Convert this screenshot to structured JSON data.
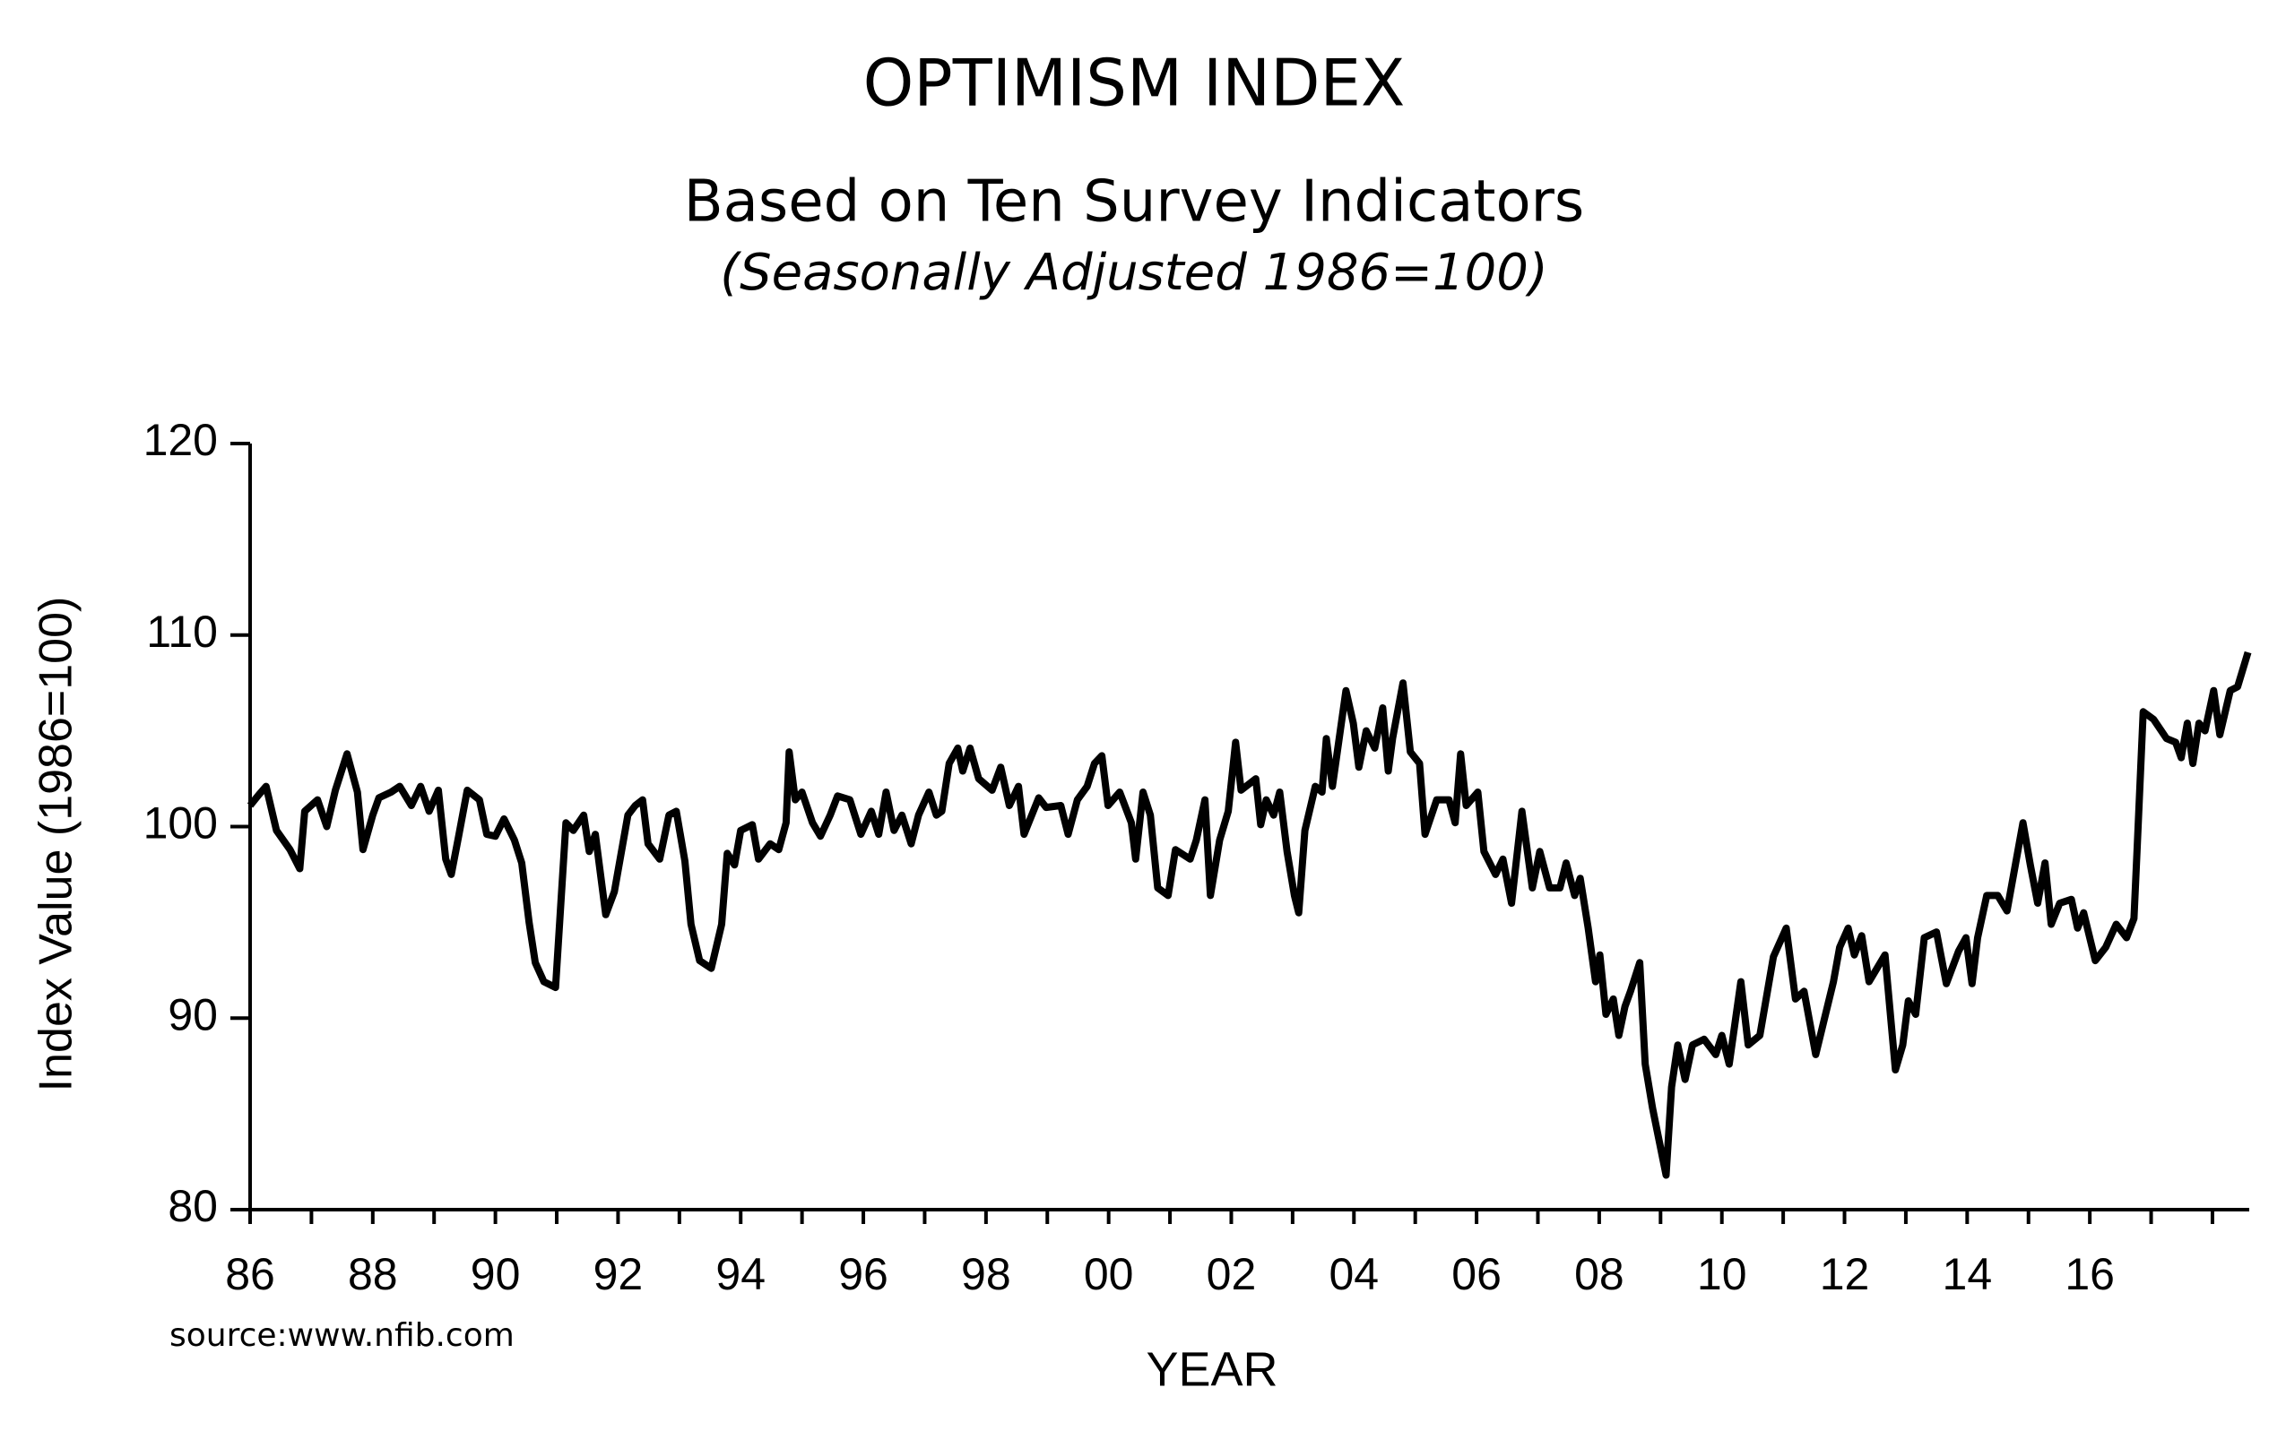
{
  "chart_data": {
    "type": "line",
    "title": "OPTIMISM INDEX",
    "subtitle": "Based on Ten Survey Indicators",
    "subtitle2": "(Seasonally Adjusted 1986=100)",
    "ylabel": "Index Value (1986=100)",
    "xlabel": "YEAR",
    "source": "source:www.nfib.com",
    "color": "#000000",
    "xlim": [
      1986,
      2018.6
    ],
    "ylim": [
      80,
      120
    ],
    "yticks": [
      80,
      90,
      100,
      110,
      120
    ],
    "xticks": [
      {
        "value": 1986,
        "label": "86"
      },
      {
        "value": 1988,
        "label": "88"
      },
      {
        "value": 1990,
        "label": "90"
      },
      {
        "value": 1992,
        "label": "92"
      },
      {
        "value": 1994,
        "label": "94"
      },
      {
        "value": 1996,
        "label": "96"
      },
      {
        "value": 1998,
        "label": "98"
      },
      {
        "value": 2000,
        "label": "00"
      },
      {
        "value": 2002,
        "label": "02"
      },
      {
        "value": 2004,
        "label": "04"
      },
      {
        "value": 2006,
        "label": "06"
      },
      {
        "value": 2008,
        "label": "08"
      },
      {
        "value": 2010,
        "label": "10"
      },
      {
        "value": 2012,
        "label": "12"
      },
      {
        "value": 2014,
        "label": "14"
      },
      {
        "value": 2016,
        "label": "16"
      }
    ],
    "xminor_ticks": [
      1987,
      1989,
      1991,
      1993,
      1995,
      1997,
      1999,
      2001,
      2003,
      2005,
      2007,
      2009,
      2011,
      2013,
      2015,
      2017,
      2018
    ],
    "x": [
      1986.0,
      1986.15,
      1986.26,
      1986.43,
      1986.65,
      1986.81,
      1986.89,
      1987.1,
      1987.25,
      1987.39,
      1987.58,
      1987.75,
      1987.84,
      1988.0,
      1988.1,
      1988.3,
      1988.44,
      1988.63,
      1988.78,
      1988.92,
      1989.07,
      1989.19,
      1989.28,
      1989.4,
      1989.54,
      1989.74,
      1989.86,
      1990.0,
      1990.14,
      1990.31,
      1990.43,
      1990.55,
      1990.65,
      1990.79,
      1990.98,
      1991.15,
      1991.27,
      1991.44,
      1991.53,
      1991.63,
      1991.8,
      1991.94,
      1992.16,
      1992.28,
      1992.4,
      1992.49,
      1992.68,
      1992.83,
      1992.95,
      1993.09,
      1993.19,
      1993.33,
      1993.52,
      1993.69,
      1993.78,
      1993.9,
      1994.0,
      1994.19,
      1994.29,
      1994.48,
      1994.62,
      1994.74,
      1994.79,
      1994.89,
      1995.0,
      1995.17,
      1995.3,
      1995.46,
      1995.58,
      1995.78,
      1995.96,
      1996.13,
      1996.25,
      1996.37,
      1996.5,
      1996.63,
      1996.78,
      1996.9,
      1997.07,
      1997.19,
      1997.28,
      1997.4,
      1997.54,
      1997.62,
      1997.74,
      1997.88,
      1998.1,
      1998.24,
      1998.38,
      1998.53,
      1998.62,
      1998.86,
      1998.98,
      1999.22,
      1999.34,
      1999.49,
      1999.65,
      1999.77,
      1999.89,
      1999.99,
      2000.18,
      2000.37,
      2000.44,
      2000.56,
      2000.68,
      2000.8,
      2000.97,
      2001.09,
      2001.33,
      2001.43,
      2001.57,
      2001.66,
      2001.81,
      2001.95,
      2002.07,
      2002.16,
      2002.4,
      2002.48,
      2002.57,
      2002.69,
      2002.79,
      2002.91,
      2003.03,
      2003.1,
      2003.2,
      2003.37,
      2003.48,
      2003.55,
      2003.65,
      2003.87,
      2003.99,
      2004.08,
      2004.2,
      2004.34,
      2004.47,
      2004.56,
      2004.63,
      2004.8,
      2004.92,
      2005.07,
      2005.16,
      2005.35,
      2005.55,
      2005.65,
      2005.74,
      2005.83,
      2006.02,
      2006.12,
      2006.31,
      2006.43,
      2006.57,
      2006.74,
      2006.91,
      2007.03,
      2007.19,
      2007.36,
      2007.46,
      2007.6,
      2007.69,
      2007.82,
      2007.94,
      2008.01,
      2008.11,
      2008.23,
      2008.32,
      2008.42,
      2008.51,
      2008.66,
      2008.75,
      2008.87,
      2009.09,
      2009.18,
      2009.28,
      2009.4,
      2009.52,
      2009.71,
      2009.9,
      2010.0,
      2010.12,
      2010.31,
      2010.43,
      2010.62,
      2010.84,
      2011.05,
      2011.2,
      2011.34,
      2011.53,
      2011.82,
      2011.92,
      2012.06,
      2012.16,
      2012.28,
      2012.4,
      2012.66,
      2012.83,
      2012.95,
      2013.04,
      2013.16,
      2013.3,
      2013.5,
      2013.66,
      2013.86,
      2013.98,
      2014.08,
      2014.17,
      2014.32,
      2014.5,
      2014.65,
      2014.91,
      2015.03,
      2015.15,
      2015.27,
      2015.37,
      2015.51,
      2015.7,
      2015.8,
      2015.9,
      2016.09,
      2016.26,
      2016.43,
      2016.6,
      2016.72,
      2016.77,
      2016.87,
      2017.04,
      2017.25,
      2017.4,
      2017.49,
      2017.59,
      2017.68,
      2017.78,
      2017.88,
      2018.02,
      2018.12,
      2018.29,
      2018.41,
      2018.58
    ],
    "values": [
      101.1,
      101.7,
      102.1,
      99.8,
      98.8,
      97.8,
      100.8,
      101.4,
      100,
      101.9,
      103.8,
      101.8,
      98.8,
      100.6,
      101.5,
      101.8,
      102.1,
      101.1,
      102.1,
      100.8,
      101.9,
      98.3,
      97.5,
      99.5,
      101.9,
      101.4,
      99.6,
      99.5,
      100.4,
      99.3,
      98.1,
      95,
      92.9,
      91.9,
      91.6,
      100.2,
      99.8,
      100.6,
      98.7,
      99.6,
      95.4,
      96.6,
      100.6,
      101.1,
      101.4,
      99.1,
      98.3,
      100.6,
      100.8,
      98.2,
      94.9,
      93,
      92.6,
      94.9,
      98.6,
      98,
      99.8,
      100.1,
      98.3,
      99.1,
      98.8,
      100.2,
      103.9,
      101.4,
      101.8,
      100.2,
      99.5,
      100.6,
      101.6,
      101.4,
      99.6,
      100.8,
      99.6,
      101.8,
      99.8,
      100.6,
      99.1,
      100.6,
      101.8,
      100.6,
      100.8,
      103.3,
      104.1,
      102.9,
      104.1,
      102.5,
      101.9,
      103.1,
      101.1,
      102.1,
      99.6,
      101.5,
      101,
      101.1,
      99.6,
      101.4,
      102.1,
      103.3,
      103.7,
      101.1,
      101.8,
      100.2,
      98.3,
      101.8,
      100.6,
      96.8,
      96.4,
      98.8,
      98.3,
      99.3,
      101.4,
      96.4,
      99.3,
      100.8,
      104.4,
      101.9,
      102.5,
      100.1,
      101.4,
      100.6,
      101.8,
      98.7,
      96.4,
      95.5,
      99.8,
      102.1,
      101.8,
      104.6,
      102.1,
      107.1,
      105.4,
      103.1,
      105,
      104.1,
      106.2,
      102.9,
      104.6,
      107.5,
      103.9,
      103.3,
      99.6,
      101.4,
      101.4,
      100.2,
      103.8,
      101.1,
      101.8,
      98.7,
      97.5,
      98.3,
      96,
      100.8,
      96.8,
      98.7,
      96.8,
      96.8,
      98.1,
      96.4,
      97.3,
      94.7,
      91.9,
      93.3,
      90.2,
      91,
      89.1,
      90.6,
      91.4,
      92.9,
      87.6,
      85.3,
      81.8,
      86.4,
      88.6,
      86.8,
      88.6,
      88.9,
      88.1,
      89.1,
      87.6,
      91.9,
      88.6,
      89.1,
      93.2,
      94.7,
      91,
      91.4,
      88.1,
      91.9,
      93.7,
      94.7,
      93.3,
      94.3,
      91.9,
      93.3,
      87.3,
      88.6,
      90.9,
      90.2,
      94.2,
      94.5,
      91.8,
      93.5,
      94.2,
      91.8,
      94.2,
      96.4,
      96.4,
      95.6,
      100.2,
      98,
      96,
      98.1,
      94.9,
      96,
      96.2,
      94.7,
      95.5,
      93,
      93.7,
      94.9,
      94.2,
      95.2,
      98.7,
      106,
      105.6,
      104.6,
      104.4,
      103.6,
      105.4,
      103.3,
      105.4,
      105,
      107.1,
      104.8,
      107.1,
      107.3,
      109.1
    ]
  }
}
